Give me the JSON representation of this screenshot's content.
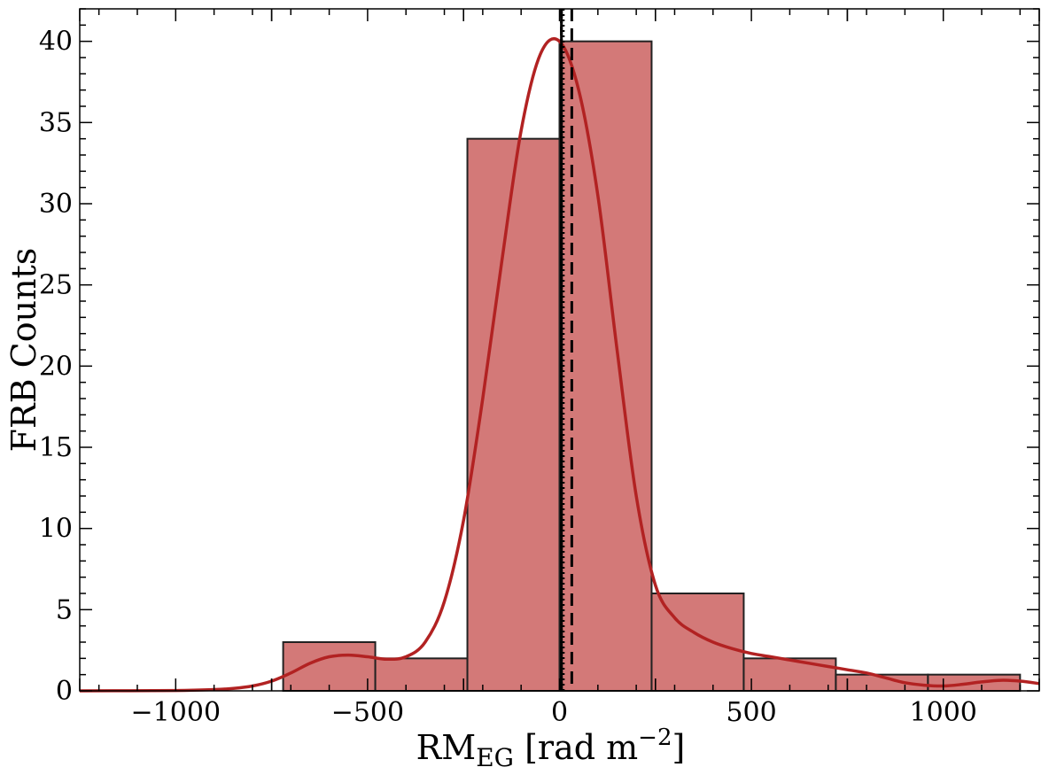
{
  "chart_data": {
    "type": "bar",
    "xlabel": {
      "base": "RM",
      "sub": "EG",
      "unit": " [rad m",
      "sup": "−2",
      "close": "]"
    },
    "ylabel": "FRB Counts",
    "xlim": [
      -1250,
      1250
    ],
    "ylim": [
      0,
      42
    ],
    "x_ticks": [
      -1000,
      -500,
      0,
      500,
      1000
    ],
    "x_tick_labels": [
      "−1000",
      "−500",
      "0",
      "500",
      "1000"
    ],
    "y_ticks": [
      0,
      5,
      10,
      15,
      20,
      25,
      30,
      35,
      40
    ],
    "y_tick_labels": [
      "0",
      "5",
      "10",
      "15",
      "20",
      "25",
      "30",
      "35",
      "40"
    ],
    "bins": [
      {
        "x0": -720,
        "x1": -480,
        "count": 3
      },
      {
        "x0": -480,
        "x1": -240,
        "count": 2
      },
      {
        "x0": -240,
        "x1": 0,
        "count": 34
      },
      {
        "x0": 0,
        "x1": 240,
        "count": 40
      },
      {
        "x0": 240,
        "x1": 480,
        "count": 6
      },
      {
        "x0": 480,
        "x1": 720,
        "count": 2
      },
      {
        "x0": 720,
        "x1": 960,
        "count": 1
      },
      {
        "x0": 960,
        "x1": 1200,
        "count": 1
      }
    ],
    "kde": {
      "x": [
        -1250,
        -1000,
        -900,
        -850,
        -800,
        -750,
        -700,
        -650,
        -600,
        -550,
        -500,
        -450,
        -400,
        -350,
        -300,
        -250,
        -200,
        -150,
        -100,
        -50,
        0,
        50,
        100,
        150,
        200,
        250,
        300,
        350,
        400,
        450,
        500,
        550,
        600,
        650,
        700,
        750,
        800,
        850,
        900,
        950,
        1000,
        1050,
        1100,
        1150,
        1200,
        1250
      ],
      "y": [
        0,
        0.02,
        0.08,
        0.15,
        0.3,
        0.6,
        1.1,
        1.7,
        2.1,
        2.2,
        2.1,
        1.95,
        2.1,
        3.0,
        5.5,
        10.5,
        18.0,
        26.5,
        34.5,
        39.2,
        40.0,
        37.0,
        30.5,
        21.0,
        12.0,
        6.5,
        4.5,
        3.6,
        3.0,
        2.6,
        2.3,
        2.1,
        1.9,
        1.7,
        1.5,
        1.3,
        1.1,
        0.8,
        0.5,
        0.35,
        0.3,
        0.4,
        0.55,
        0.65,
        0.6,
        0.45
      ]
    },
    "reference_lines": [
      {
        "x": 5,
        "style": "solid"
      },
      {
        "x": 10,
        "style": "dotted"
      },
      {
        "x": 5,
        "style": "dashdot"
      },
      {
        "x": 32,
        "style": "dashed"
      }
    ],
    "colors": {
      "bar_fill": "#c0403e",
      "bar_edge": "#222222",
      "kde": "#b22222",
      "lines": "#000000"
    },
    "grid": false
  }
}
